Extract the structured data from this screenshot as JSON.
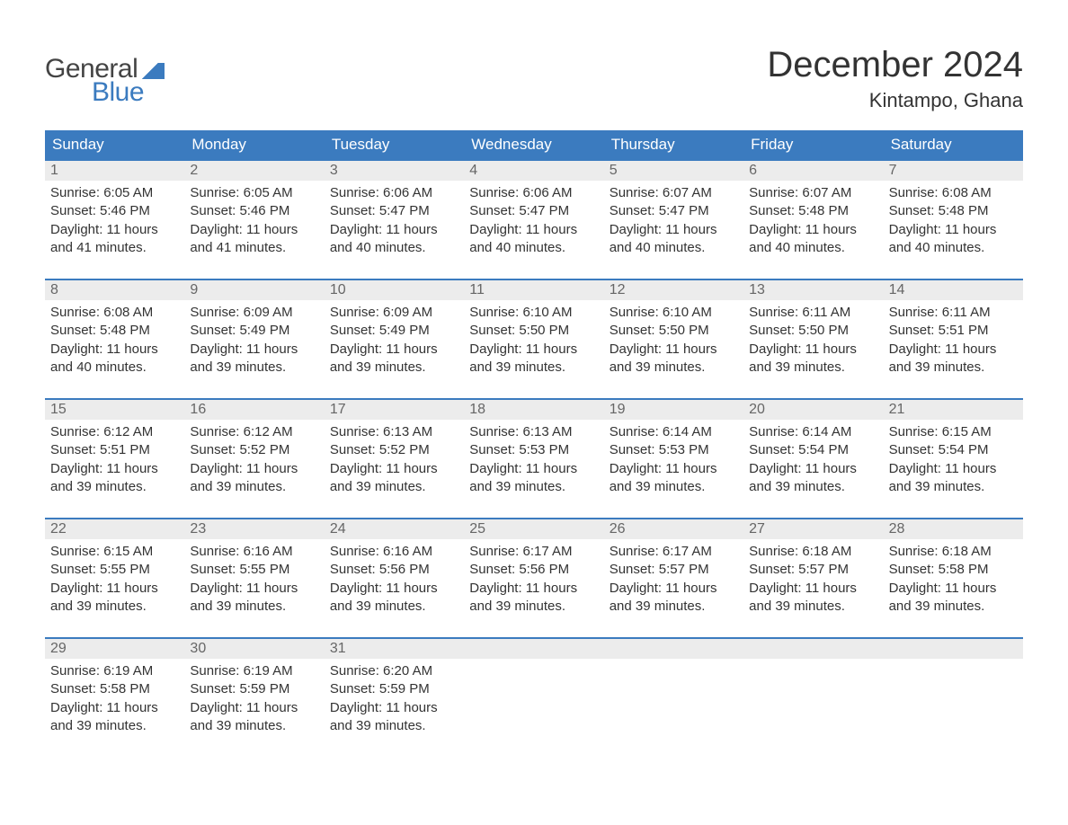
{
  "logo": {
    "text1": "General",
    "text2": "Blue"
  },
  "title": "December 2024",
  "location": "Kintampo, Ghana",
  "colors": {
    "header_bg": "#3b7bbf",
    "header_text": "#ffffff",
    "daynum_bg": "#ececec",
    "daynum_text": "#666666",
    "body_text": "#333333",
    "week_border": "#3b7bbf"
  },
  "day_names": [
    "Sunday",
    "Monday",
    "Tuesday",
    "Wednesday",
    "Thursday",
    "Friday",
    "Saturday"
  ],
  "weeks": [
    [
      {
        "n": "1",
        "sr": "Sunrise: 6:05 AM",
        "ss": "Sunset: 5:46 PM",
        "d1": "Daylight: 11 hours",
        "d2": "and 41 minutes."
      },
      {
        "n": "2",
        "sr": "Sunrise: 6:05 AM",
        "ss": "Sunset: 5:46 PM",
        "d1": "Daylight: 11 hours",
        "d2": "and 41 minutes."
      },
      {
        "n": "3",
        "sr": "Sunrise: 6:06 AM",
        "ss": "Sunset: 5:47 PM",
        "d1": "Daylight: 11 hours",
        "d2": "and 40 minutes."
      },
      {
        "n": "4",
        "sr": "Sunrise: 6:06 AM",
        "ss": "Sunset: 5:47 PM",
        "d1": "Daylight: 11 hours",
        "d2": "and 40 minutes."
      },
      {
        "n": "5",
        "sr": "Sunrise: 6:07 AM",
        "ss": "Sunset: 5:47 PM",
        "d1": "Daylight: 11 hours",
        "d2": "and 40 minutes."
      },
      {
        "n": "6",
        "sr": "Sunrise: 6:07 AM",
        "ss": "Sunset: 5:48 PM",
        "d1": "Daylight: 11 hours",
        "d2": "and 40 minutes."
      },
      {
        "n": "7",
        "sr": "Sunrise: 6:08 AM",
        "ss": "Sunset: 5:48 PM",
        "d1": "Daylight: 11 hours",
        "d2": "and 40 minutes."
      }
    ],
    [
      {
        "n": "8",
        "sr": "Sunrise: 6:08 AM",
        "ss": "Sunset: 5:48 PM",
        "d1": "Daylight: 11 hours",
        "d2": "and 40 minutes."
      },
      {
        "n": "9",
        "sr": "Sunrise: 6:09 AM",
        "ss": "Sunset: 5:49 PM",
        "d1": "Daylight: 11 hours",
        "d2": "and 39 minutes."
      },
      {
        "n": "10",
        "sr": "Sunrise: 6:09 AM",
        "ss": "Sunset: 5:49 PM",
        "d1": "Daylight: 11 hours",
        "d2": "and 39 minutes."
      },
      {
        "n": "11",
        "sr": "Sunrise: 6:10 AM",
        "ss": "Sunset: 5:50 PM",
        "d1": "Daylight: 11 hours",
        "d2": "and 39 minutes."
      },
      {
        "n": "12",
        "sr": "Sunrise: 6:10 AM",
        "ss": "Sunset: 5:50 PM",
        "d1": "Daylight: 11 hours",
        "d2": "and 39 minutes."
      },
      {
        "n": "13",
        "sr": "Sunrise: 6:11 AM",
        "ss": "Sunset: 5:50 PM",
        "d1": "Daylight: 11 hours",
        "d2": "and 39 minutes."
      },
      {
        "n": "14",
        "sr": "Sunrise: 6:11 AM",
        "ss": "Sunset: 5:51 PM",
        "d1": "Daylight: 11 hours",
        "d2": "and 39 minutes."
      }
    ],
    [
      {
        "n": "15",
        "sr": "Sunrise: 6:12 AM",
        "ss": "Sunset: 5:51 PM",
        "d1": "Daylight: 11 hours",
        "d2": "and 39 minutes."
      },
      {
        "n": "16",
        "sr": "Sunrise: 6:12 AM",
        "ss": "Sunset: 5:52 PM",
        "d1": "Daylight: 11 hours",
        "d2": "and 39 minutes."
      },
      {
        "n": "17",
        "sr": "Sunrise: 6:13 AM",
        "ss": "Sunset: 5:52 PM",
        "d1": "Daylight: 11 hours",
        "d2": "and 39 minutes."
      },
      {
        "n": "18",
        "sr": "Sunrise: 6:13 AM",
        "ss": "Sunset: 5:53 PM",
        "d1": "Daylight: 11 hours",
        "d2": "and 39 minutes."
      },
      {
        "n": "19",
        "sr": "Sunrise: 6:14 AM",
        "ss": "Sunset: 5:53 PM",
        "d1": "Daylight: 11 hours",
        "d2": "and 39 minutes."
      },
      {
        "n": "20",
        "sr": "Sunrise: 6:14 AM",
        "ss": "Sunset: 5:54 PM",
        "d1": "Daylight: 11 hours",
        "d2": "and 39 minutes."
      },
      {
        "n": "21",
        "sr": "Sunrise: 6:15 AM",
        "ss": "Sunset: 5:54 PM",
        "d1": "Daylight: 11 hours",
        "d2": "and 39 minutes."
      }
    ],
    [
      {
        "n": "22",
        "sr": "Sunrise: 6:15 AM",
        "ss": "Sunset: 5:55 PM",
        "d1": "Daylight: 11 hours",
        "d2": "and 39 minutes."
      },
      {
        "n": "23",
        "sr": "Sunrise: 6:16 AM",
        "ss": "Sunset: 5:55 PM",
        "d1": "Daylight: 11 hours",
        "d2": "and 39 minutes."
      },
      {
        "n": "24",
        "sr": "Sunrise: 6:16 AM",
        "ss": "Sunset: 5:56 PM",
        "d1": "Daylight: 11 hours",
        "d2": "and 39 minutes."
      },
      {
        "n": "25",
        "sr": "Sunrise: 6:17 AM",
        "ss": "Sunset: 5:56 PM",
        "d1": "Daylight: 11 hours",
        "d2": "and 39 minutes."
      },
      {
        "n": "26",
        "sr": "Sunrise: 6:17 AM",
        "ss": "Sunset: 5:57 PM",
        "d1": "Daylight: 11 hours",
        "d2": "and 39 minutes."
      },
      {
        "n": "27",
        "sr": "Sunrise: 6:18 AM",
        "ss": "Sunset: 5:57 PM",
        "d1": "Daylight: 11 hours",
        "d2": "and 39 minutes."
      },
      {
        "n": "28",
        "sr": "Sunrise: 6:18 AM",
        "ss": "Sunset: 5:58 PM",
        "d1": "Daylight: 11 hours",
        "d2": "and 39 minutes."
      }
    ],
    [
      {
        "n": "29",
        "sr": "Sunrise: 6:19 AM",
        "ss": "Sunset: 5:58 PM",
        "d1": "Daylight: 11 hours",
        "d2": "and 39 minutes."
      },
      {
        "n": "30",
        "sr": "Sunrise: 6:19 AM",
        "ss": "Sunset: 5:59 PM",
        "d1": "Daylight: 11 hours",
        "d2": "and 39 minutes."
      },
      {
        "n": "31",
        "sr": "Sunrise: 6:20 AM",
        "ss": "Sunset: 5:59 PM",
        "d1": "Daylight: 11 hours",
        "d2": "and 39 minutes."
      },
      {
        "empty": true
      },
      {
        "empty": true
      },
      {
        "empty": true
      },
      {
        "empty": true
      }
    ]
  ]
}
